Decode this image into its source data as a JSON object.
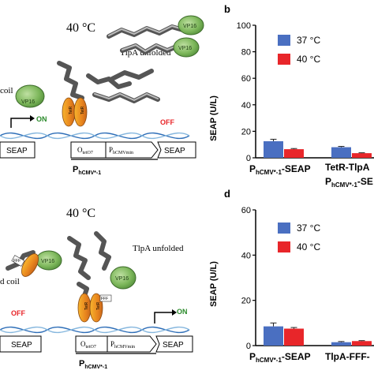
{
  "panels": {
    "a": {
      "temperature": "40 °C",
      "unfolded_label": "TlpA unfolded",
      "coil_label": "coil",
      "vp16_label": "VP16",
      "tetr_label": "TetR",
      "state_on": "ON",
      "state_off": "OFF",
      "reporter_label": "SEAP",
      "operator_label": "O",
      "operator_sub": "tetO7",
      "promoter_label": "P",
      "promoter_sub": "hCMVmin",
      "construct_label": "P",
      "construct_sub": "hCMV*-1"
    },
    "b": {
      "panel_label": "b",
      "ylabel": "SEAP (U/L)",
      "legend": [
        "37 °C",
        "40 °C"
      ],
      "colors": {
        "c37": "#4a6fc1",
        "c40": "#e8262a"
      },
      "category1_main": "P",
      "category1_sub": "hCMV*-1",
      "category1_tail": "-SEAP",
      "category2_line1": "TetR-TlpA",
      "category2_line2_main": "P",
      "category2_line2_sub": "hCMV*-1",
      "category2_line2_tail": "-SE",
      "chart_data": {
        "type": "bar",
        "ylabel": "SEAP (U/L)",
        "ylim": [
          0,
          100
        ],
        "yticks": [
          0,
          20,
          40,
          60,
          80,
          100
        ],
        "series": [
          {
            "name": "37 °C",
            "values": [
              12.5,
              8.0
            ],
            "errors": [
              1.5,
              0.6
            ]
          },
          {
            "name": "40 °C",
            "values": [
              6.5,
              3.5
            ],
            "errors": [
              0.5,
              0.3
            ]
          }
        ],
        "legend_position": "top-right",
        "grid": false
      }
    },
    "c": {
      "temperature": "40 °C",
      "unfolded_label": "TlpA unfolded",
      "coil_label": "d coil",
      "fff_label": "FFF",
      "vp16_label": "VP16",
      "tetr_label": "TetR",
      "state_on": "ON",
      "state_off": "OFF",
      "reporter_label": "SEAP",
      "operator_label": "O",
      "operator_sub": "tetO7",
      "promoter_label": "P",
      "promoter_sub": "hCMVmin",
      "construct_label": "P",
      "construct_sub": "hCMV*-1"
    },
    "d": {
      "panel_label": "d",
      "ylabel": "SEAP (U/L)",
      "legend": [
        "37 °C",
        "40 °C"
      ],
      "colors": {
        "c37": "#4a6fc1",
        "c40": "#e8262a"
      },
      "category1_main": "P",
      "category1_sub": "hCMV*-1",
      "category1_tail": "-SEAP",
      "category2_line1": "TlpA-FFF-",
      "chart_data": {
        "type": "bar",
        "ylabel": "SEAP (U/L)",
        "ylim": [
          0,
          60
        ],
        "yticks": [
          0,
          20,
          40,
          60
        ],
        "series": [
          {
            "name": "37 °C",
            "values": [
              8.5,
              1.5
            ],
            "errors": [
              1.5,
              0.3
            ]
          },
          {
            "name": "40 °C",
            "values": [
              7.5,
              2.0
            ],
            "errors": [
              0.5,
              0.2
            ]
          }
        ],
        "legend_position": "top-right",
        "grid": false
      }
    }
  }
}
